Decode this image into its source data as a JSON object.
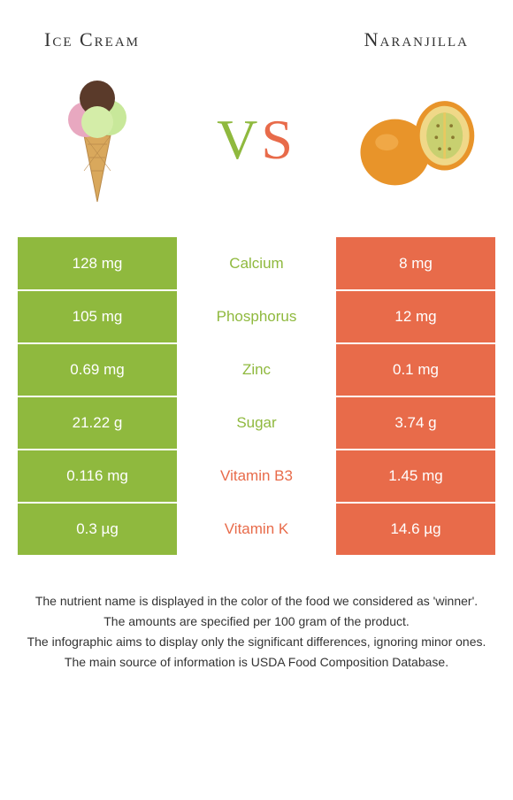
{
  "header": {
    "left_title": "Ice Cream",
    "right_title": "Naranjilla"
  },
  "vs": {
    "v": "V",
    "s": "S"
  },
  "colors": {
    "left": "#8fb93e",
    "right": "#e86b4a",
    "bg": "#ffffff"
  },
  "rows": [
    {
      "left": "128 mg",
      "label": "Calcium",
      "right": "8 mg",
      "winner": "left"
    },
    {
      "left": "105 mg",
      "label": "Phosphorus",
      "right": "12 mg",
      "winner": "left"
    },
    {
      "left": "0.69 mg",
      "label": "Zinc",
      "right": "0.1 mg",
      "winner": "left"
    },
    {
      "left": "21.22 g",
      "label": "Sugar",
      "right": "3.74 g",
      "winner": "left"
    },
    {
      "left": "0.116 mg",
      "label": "Vitamin B3",
      "right": "1.45 mg",
      "winner": "right"
    },
    {
      "left": "0.3 µg",
      "label": "Vitamin K",
      "right": "14.6 µg",
      "winner": "right"
    }
  ],
  "footer": {
    "l1": "The nutrient name is displayed in the color of the food we considered as 'winner'.",
    "l2": "The amounts are specified per 100 gram of the product.",
    "l3": "The infographic aims to display only the significant differences, ignoring minor ones.",
    "l4": "The main source of information is USDA Food Composition Database."
  },
  "icons": {
    "left": "ice-cream",
    "right": "naranjilla"
  }
}
